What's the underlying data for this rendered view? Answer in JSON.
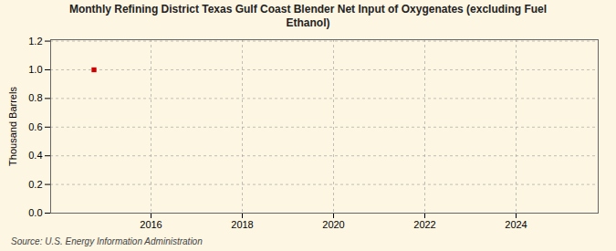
{
  "chart_data": {
    "type": "scatter",
    "title": "Monthly Refining District Texas Gulf Coast Blender Net Input of Oxygenates (excluding Fuel\nEthanol)",
    "ylabel": "Thousand Barrels",
    "source": "Source: U.S. Energy Information Administration",
    "x": [
      2014.75
    ],
    "values": [
      1.0
    ],
    "color": "#cc0000",
    "marker": "square",
    "xlim": [
      2013.8,
      2025.8
    ],
    "xticks": [
      2016,
      2018,
      2020,
      2022,
      2024
    ],
    "ylim": [
      0.0,
      1.21
    ],
    "yticks": [
      {
        "value": 0.0,
        "label": "0.0"
      },
      0.2,
      0.4,
      0.6,
      0.8,
      {
        "value": 1.0,
        "label": "1.0"
      },
      1.2
    ],
    "grid": true
  }
}
